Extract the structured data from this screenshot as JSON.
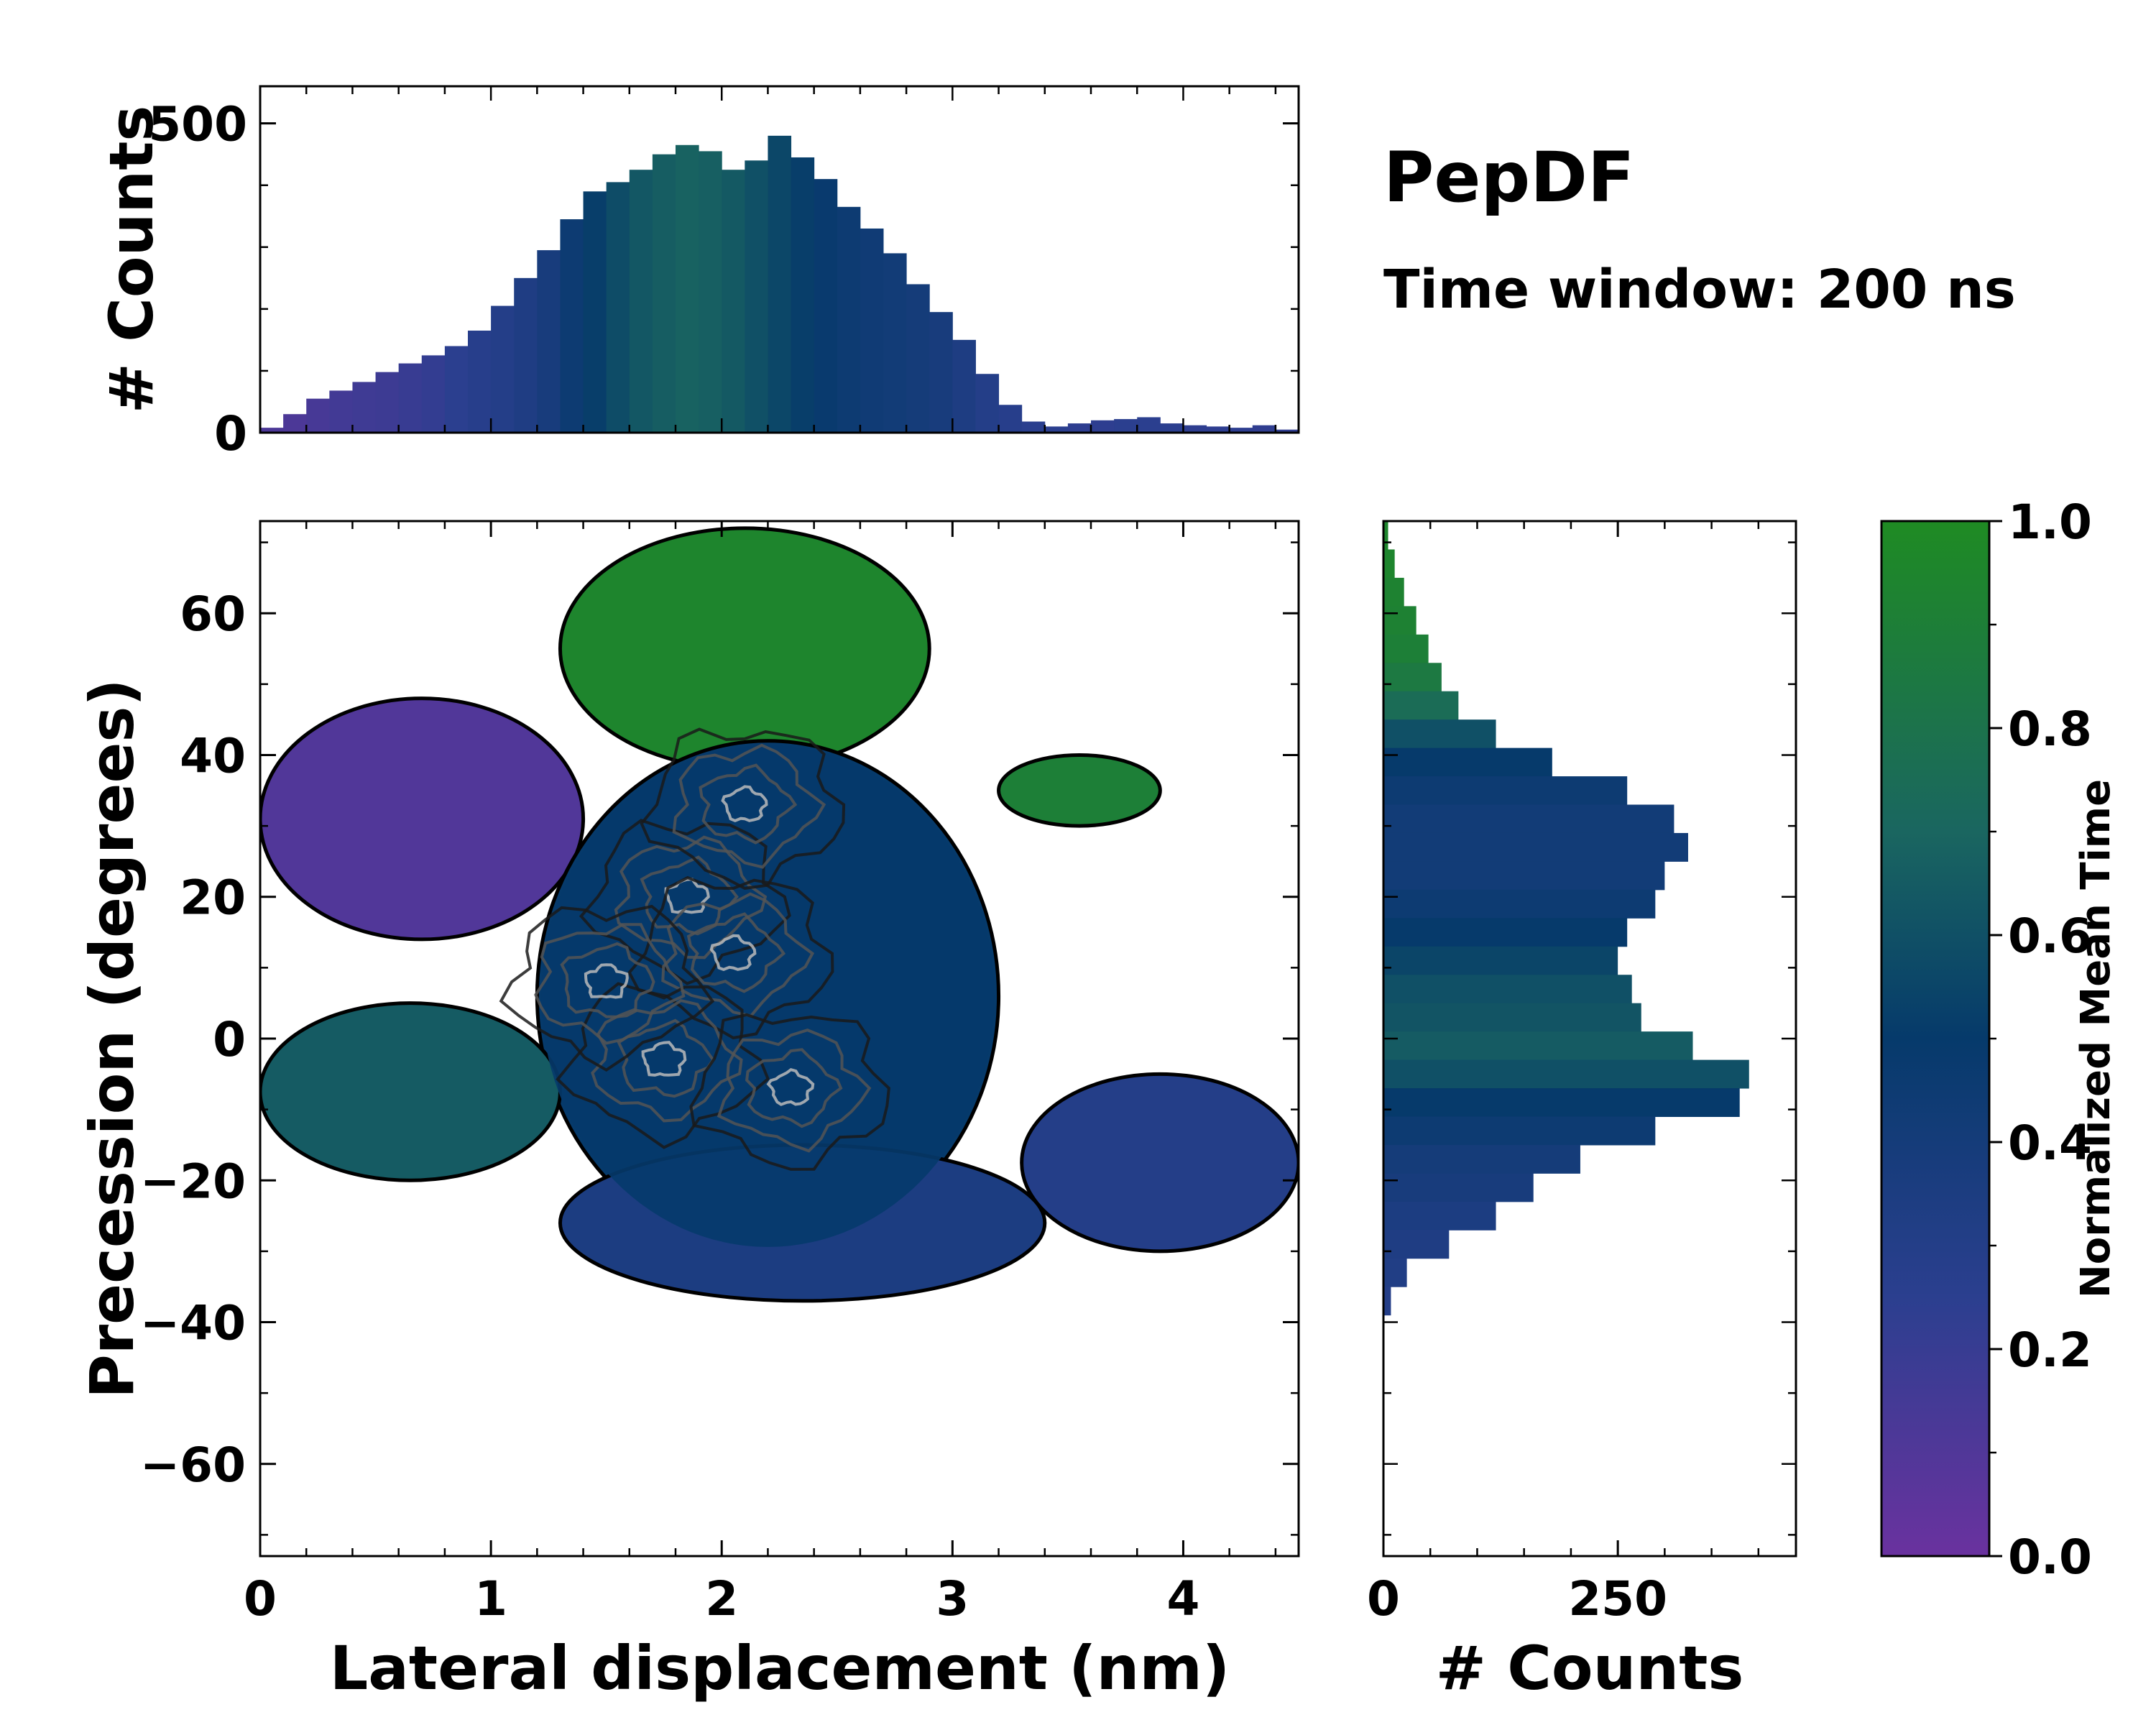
{
  "chart_data": [
    {
      "type": "bar",
      "panel": "top-marginal-histogram",
      "title": "PepDF",
      "subtitle": "Time window: 200 ns",
      "xlabel": "",
      "ylabel": "# Counts",
      "xlim": [
        0,
        4.5
      ],
      "ylim": [
        0,
        560
      ],
      "yticks": [
        0,
        500
      ],
      "ytick_labels": [
        "0",
        "500"
      ],
      "bin_centers_nm": [
        0.05,
        0.15,
        0.25,
        0.35,
        0.45,
        0.55,
        0.65,
        0.75,
        0.85,
        0.95,
        1.05,
        1.15,
        1.25,
        1.35,
        1.45,
        1.55,
        1.65,
        1.75,
        1.85,
        1.95,
        2.05,
        2.15,
        2.25,
        2.35,
        2.45,
        2.55,
        2.65,
        2.75,
        2.85,
        2.95,
        3.05,
        3.15,
        3.25,
        3.35,
        3.45,
        3.55,
        3.65,
        3.75,
        3.85,
        3.95,
        4.05,
        4.15,
        4.25,
        4.35,
        4.45
      ],
      "counts": [
        8,
        30,
        55,
        68,
        82,
        98,
        112,
        125,
        140,
        165,
        205,
        250,
        295,
        345,
        390,
        405,
        425,
        450,
        465,
        455,
        425,
        440,
        480,
        445,
        410,
        365,
        330,
        290,
        240,
        195,
        150,
        95,
        45,
        18,
        10,
        15,
        20,
        22,
        25,
        15,
        12,
        10,
        8,
        12,
        5
      ],
      "mean_time": [
        0.12,
        0.12,
        0.14,
        0.16,
        0.17,
        0.18,
        0.2,
        0.22,
        0.25,
        0.28,
        0.3,
        0.33,
        0.38,
        0.45,
        0.52,
        0.58,
        0.63,
        0.66,
        0.68,
        0.67,
        0.64,
        0.6,
        0.56,
        0.52,
        0.48,
        0.45,
        0.43,
        0.42,
        0.4,
        0.38,
        0.34,
        0.3,
        0.28,
        0.26,
        0.25,
        0.24,
        0.24,
        0.25,
        0.25,
        0.25,
        0.24,
        0.24,
        0.24,
        0.23,
        0.23
      ]
    },
    {
      "type": "heatmap",
      "panel": "main-2d-histogram",
      "xlabel": "Lateral displacement (nm)",
      "ylabel": "Precession (degrees)",
      "xlim": [
        0,
        4.5
      ],
      "ylim": [
        -73,
        73
      ],
      "xticks": [
        0,
        1,
        2,
        3,
        4
      ],
      "xtick_labels": [
        "0",
        "1",
        "2",
        "3",
        "4"
      ],
      "yticks": [
        -60,
        -40,
        -20,
        0,
        20,
        40,
        60
      ],
      "ytick_labels": [
        "−60",
        "−40",
        "−20",
        "0",
        "20",
        "40",
        "60"
      ],
      "color_meaning": "Normalized Mean Time",
      "regions": [
        {
          "name": "upper-green-lobe",
          "x_range": [
            1.3,
            2.9
          ],
          "y_range": [
            38,
            72
          ],
          "mean_time": 0.95
        },
        {
          "name": "upper-purple-lobe",
          "x_range": [
            0,
            1.4
          ],
          "y_range": [
            14,
            48
          ],
          "mean_time": 0.1
        },
        {
          "name": "central-core",
          "x_range": [
            1.2,
            3.2
          ],
          "y_range": [
            -30,
            42
          ],
          "mean_time": 0.5
        },
        {
          "name": "left-teal-lobe",
          "x_range": [
            0,
            1.3
          ],
          "y_range": [
            -20,
            5
          ],
          "mean_time": 0.65
        },
        {
          "name": "lower-blue-band",
          "x_range": [
            1.3,
            3.4
          ],
          "y_range": [
            -37,
            -15
          ],
          "mean_time": 0.35
        },
        {
          "name": "right-blue-tail",
          "x_range": [
            3.3,
            4.5
          ],
          "y_range": [
            -30,
            -5
          ],
          "mean_time": 0.3
        },
        {
          "name": "right-green-islands",
          "x_range": [
            3.2,
            3.9
          ],
          "y_range": [
            30,
            40
          ],
          "mean_time": 0.9
        }
      ],
      "density_peaks": [
        {
          "x": 1.85,
          "y": 20
        },
        {
          "x": 2.05,
          "y": 12
        },
        {
          "x": 1.75,
          "y": -3
        },
        {
          "x": 2.3,
          "y": -7
        },
        {
          "x": 2.1,
          "y": 33
        },
        {
          "x": 1.5,
          "y": 8
        }
      ]
    },
    {
      "type": "bar",
      "orientation": "horizontal",
      "panel": "right-marginal-histogram",
      "xlabel": "# Counts",
      "ylabel": "",
      "xlim": [
        0,
        440
      ],
      "ylim": [
        -73,
        73
      ],
      "xticks": [
        0,
        250
      ],
      "xtick_labels": [
        "0",
        "250"
      ],
      "bin_centers_deg": [
        71,
        67,
        63,
        59,
        55,
        51,
        47,
        43,
        39,
        35,
        31,
        27,
        23,
        19,
        15,
        11,
        7,
        3,
        -1,
        -5,
        -9,
        -13,
        -17,
        -21,
        -25,
        -29,
        -33,
        -37
      ],
      "counts": [
        5,
        12,
        22,
        35,
        48,
        62,
        80,
        120,
        180,
        260,
        310,
        325,
        300,
        290,
        260,
        250,
        265,
        275,
        330,
        390,
        380,
        290,
        210,
        160,
        120,
        70,
        25,
        8
      ],
      "mean_time": [
        0.95,
        0.95,
        0.93,
        0.92,
        0.9,
        0.85,
        0.75,
        0.6,
        0.5,
        0.45,
        0.42,
        0.42,
        0.42,
        0.45,
        0.5,
        0.55,
        0.6,
        0.62,
        0.65,
        0.6,
        0.5,
        0.45,
        0.4,
        0.38,
        0.35,
        0.33,
        0.32,
        0.3
      ]
    },
    {
      "type": "colorbar",
      "panel": "colorbar",
      "label": "Normalized Mean Time",
      "ylim": [
        0,
        1
      ],
      "ticks": [
        0.0,
        0.2,
        0.4,
        0.6,
        0.8,
        1.0
      ],
      "tick_labels": [
        "0.0",
        "0.2",
        "0.4",
        "0.6",
        "0.8",
        "1.0"
      ],
      "colormap_stops": [
        {
          "v": 0.0,
          "color": "#6a329f"
        },
        {
          "v": 0.25,
          "color": "#2b3f8f"
        },
        {
          "v": 0.5,
          "color": "#063a6b"
        },
        {
          "v": 0.7,
          "color": "#1a6660"
        },
        {
          "v": 1.0,
          "color": "#1f8b23"
        }
      ]
    }
  ],
  "colors": {
    "frame": "#000000",
    "contour_dark": "#1a1a1a",
    "contour_mid": "#555555",
    "contour_light": "#bbbbbb"
  }
}
